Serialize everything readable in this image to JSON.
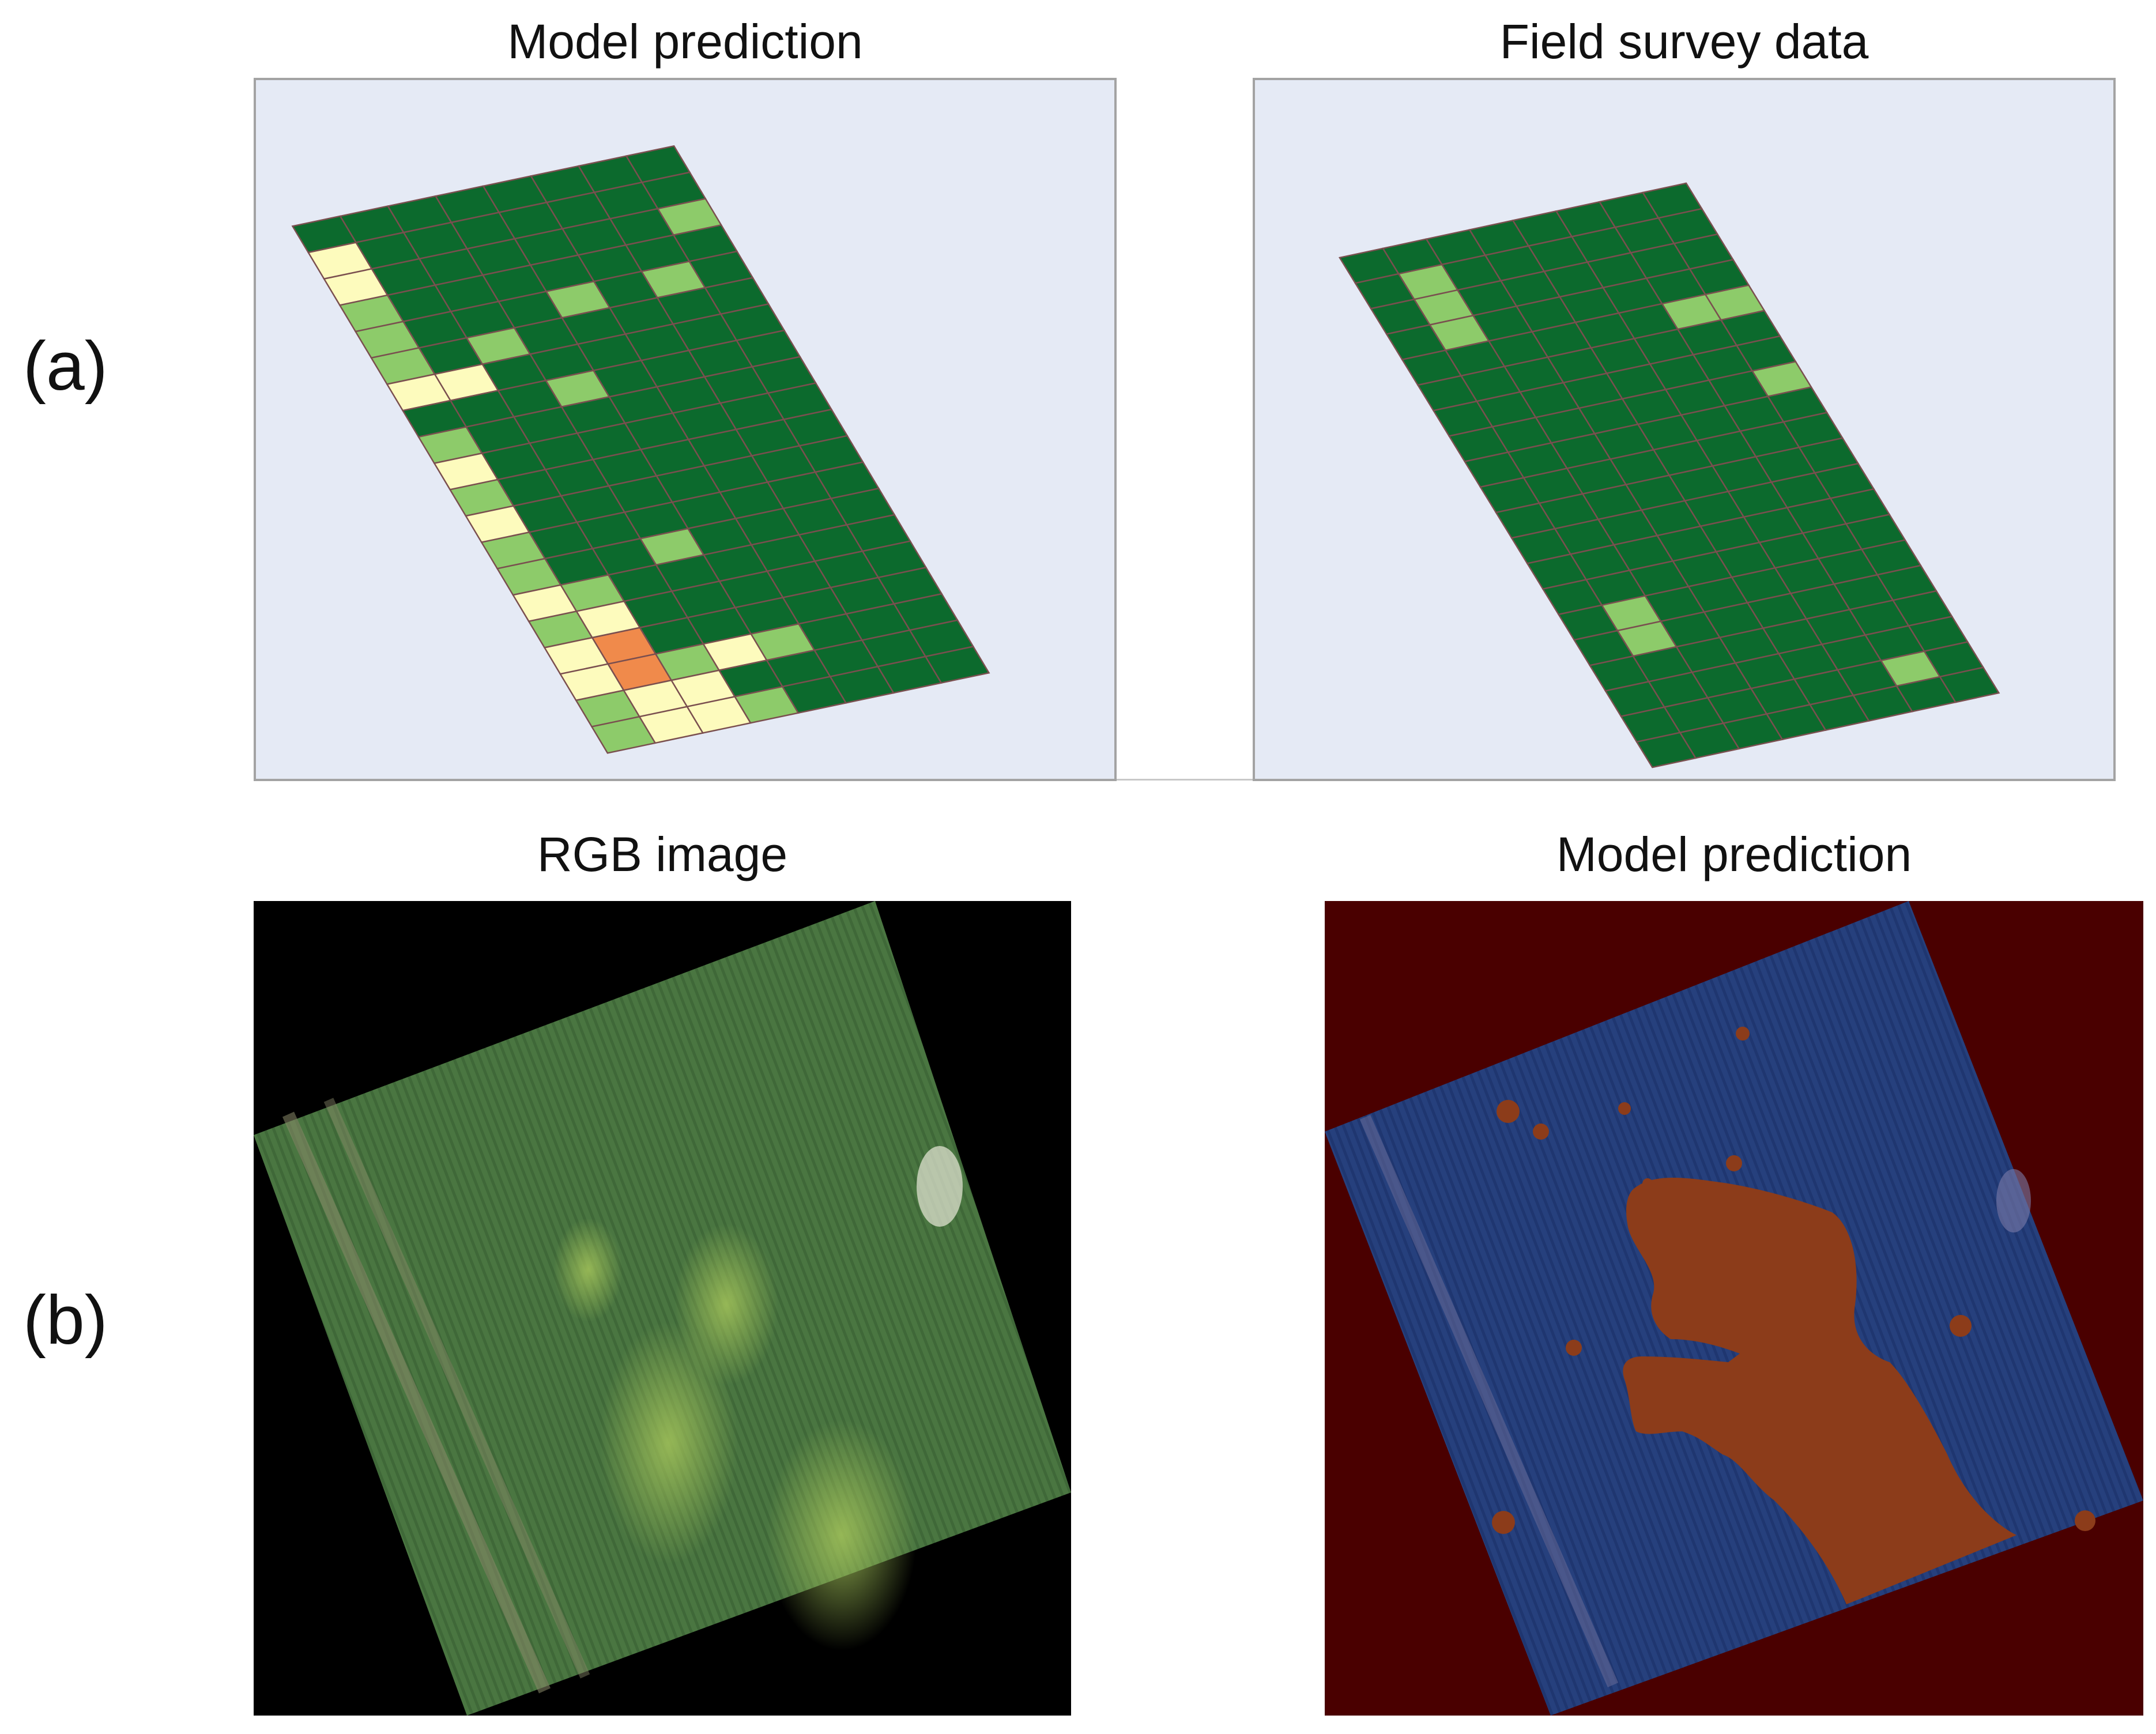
{
  "rows": [
    {
      "label": "(a)"
    },
    {
      "label": "(b)"
    }
  ],
  "panels": {
    "a_left": {
      "title": "Model prediction"
    },
    "a_right": {
      "title": "Field survey data"
    },
    "b_left": {
      "title": "RGB image"
    },
    "b_right": {
      "title": "Model prediction"
    }
  },
  "colors": {
    "grid_background": "#e5eaf5",
    "cell_dark_green": "#0c6a2d",
    "cell_light_green": "#8dcb6a",
    "cell_pale_yellow": "#fdfbbd",
    "cell_orange": "#f08a4b",
    "cell_border": "#7a4f4f",
    "rgb_field": "#4d7a43",
    "rgb_background": "#000000",
    "seg_background": "#4a0000",
    "seg_healthy": "#243d7a",
    "seg_stressed": "#8a3a18"
  },
  "grid": {
    "cols": 8,
    "rows": 20,
    "model_prediction_cells": [
      {
        "r": 1,
        "c": 0,
        "cls": "pale"
      },
      {
        "r": 2,
        "c": 0,
        "cls": "pale"
      },
      {
        "r": 3,
        "c": 0,
        "cls": "light"
      },
      {
        "r": 4,
        "c": 0,
        "cls": "light"
      },
      {
        "r": 5,
        "c": 0,
        "cls": "light"
      },
      {
        "r": 6,
        "c": 0,
        "cls": "pale"
      },
      {
        "r": 8,
        "c": 0,
        "cls": "light"
      },
      {
        "r": 9,
        "c": 0,
        "cls": "pale"
      },
      {
        "r": 10,
        "c": 0,
        "cls": "light"
      },
      {
        "r": 11,
        "c": 0,
        "cls": "pale"
      },
      {
        "r": 12,
        "c": 0,
        "cls": "light"
      },
      {
        "r": 13,
        "c": 0,
        "cls": "light"
      },
      {
        "r": 14,
        "c": 0,
        "cls": "pale"
      },
      {
        "r": 15,
        "c": 0,
        "cls": "light"
      },
      {
        "r": 16,
        "c": 0,
        "cls": "pale"
      },
      {
        "r": 17,
        "c": 0,
        "cls": "pale"
      },
      {
        "r": 18,
        "c": 0,
        "cls": "light"
      },
      {
        "r": 19,
        "c": 0,
        "cls": "light"
      },
      {
        "r": 14,
        "c": 1,
        "cls": "light"
      },
      {
        "r": 15,
        "c": 1,
        "cls": "pale"
      },
      {
        "r": 16,
        "c": 1,
        "cls": "orange"
      },
      {
        "r": 17,
        "c": 1,
        "cls": "orange"
      },
      {
        "r": 18,
        "c": 1,
        "cls": "pale"
      },
      {
        "r": 19,
        "c": 1,
        "cls": "pale"
      },
      {
        "r": 17,
        "c": 2,
        "cls": "light"
      },
      {
        "r": 18,
        "c": 2,
        "cls": "pale"
      },
      {
        "r": 19,
        "c": 2,
        "cls": "pale"
      },
      {
        "r": 17,
        "c": 3,
        "cls": "pale"
      },
      {
        "r": 19,
        "c": 3,
        "cls": "light"
      },
      {
        "r": 17,
        "c": 4,
        "cls": "light"
      },
      {
        "r": 5,
        "c": 2,
        "cls": "light"
      },
      {
        "r": 6,
        "c": 1,
        "cls": "pale"
      },
      {
        "r": 4,
        "c": 4,
        "cls": "light"
      },
      {
        "r": 7,
        "c": 3,
        "cls": "light"
      },
      {
        "r": 2,
        "c": 7,
        "cls": "light"
      },
      {
        "r": 4,
        "c": 6,
        "cls": "light"
      },
      {
        "r": 13,
        "c": 3,
        "cls": "light"
      }
    ],
    "field_survey_cells": [
      {
        "r": 1,
        "c": 1,
        "cls": "light"
      },
      {
        "r": 2,
        "c": 1,
        "cls": "light"
      },
      {
        "r": 3,
        "c": 1,
        "cls": "light"
      },
      {
        "r": 4,
        "c": 6,
        "cls": "light"
      },
      {
        "r": 4,
        "c": 7,
        "cls": "light"
      },
      {
        "r": 7,
        "c": 7,
        "cls": "light"
      },
      {
        "r": 14,
        "c": 1,
        "cls": "light"
      },
      {
        "r": 15,
        "c": 1,
        "cls": "light"
      },
      {
        "r": 18,
        "c": 6,
        "cls": "light"
      }
    ]
  }
}
